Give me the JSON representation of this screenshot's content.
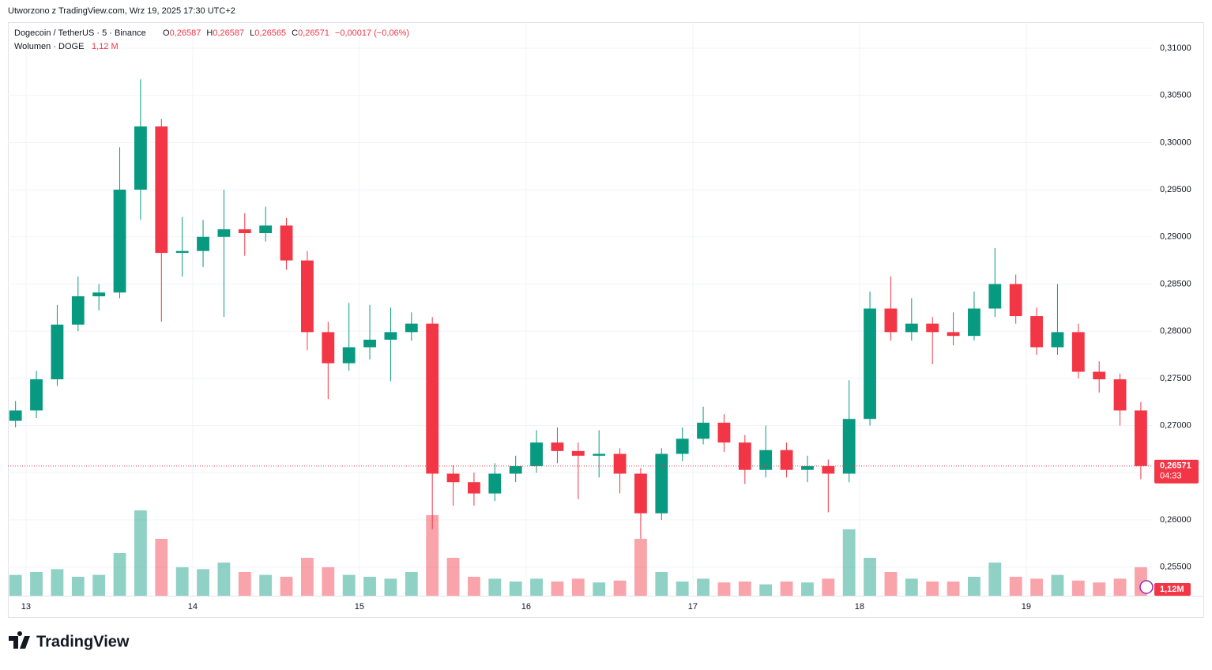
{
  "header": {
    "created": "Utworzono z TradingView.com, Wrz 19, 2025 17:30 UTC+2"
  },
  "chart_data": {
    "type": "candlestick",
    "title": "Dogecoin / TetherUS · 5 · Binance",
    "ohlc_legend": {
      "o_label": "O",
      "o": "0,26587",
      "h_label": "H",
      "h": "0,26587",
      "l_label": "L",
      "l": "0,26565",
      "c_label": "C",
      "c": "0,26571",
      "change": "−0,00017 (−0,06%)"
    },
    "volume_title": "Wolumen · DOGE",
    "volume_legend": "1,12 M",
    "x": [
      -1.5,
      1.5,
      4.5,
      7.5,
      10.5,
      13.5,
      16.5,
      19.5,
      22.5,
      25.5,
      28.5,
      31.5,
      34.5,
      37.5,
      40.5,
      43.5,
      46.5,
      49.5,
      52.5,
      55.5,
      58.5,
      61.5,
      64.5,
      67.5,
      70.5,
      73.5,
      76.5,
      79.5,
      82.5,
      85.5,
      88.5,
      91.5,
      94.5,
      97.5,
      100.5,
      103.5,
      106.5,
      109.5,
      112.5,
      115.5,
      118.5,
      121.5,
      124.5,
      127.5,
      130.5,
      133.5,
      136.5,
      139.5,
      142.5,
      145.5,
      148.5,
      151.5,
      154.5,
      157.5,
      160.5
    ],
    "open": [
      0.2705,
      0.2716,
      0.2749,
      0.2807,
      0.2837,
      0.2841,
      0.295,
      0.3017,
      0.2883,
      0.2885,
      0.29,
      0.2908,
      0.2904,
      0.2912,
      0.2875,
      0.2799,
      0.2766,
      0.2783,
      0.2791,
      0.2799,
      0.2808,
      0.2649,
      0.264,
      0.2628,
      0.2649,
      0.2657,
      0.2682,
      0.2673,
      0.2668,
      0.267,
      0.2649,
      0.2607,
      0.267,
      0.2686,
      0.2703,
      0.2682,
      0.2653,
      0.2674,
      0.2653,
      0.2657,
      0.2649,
      0.2707,
      0.2824,
      0.2799,
      0.2808,
      0.2799,
      0.2795,
      0.2824,
      0.285,
      0.2816,
      0.2783,
      0.2799,
      0.2757,
      0.2749,
      0.2716
    ],
    "high": [
      0.2726,
      0.2758,
      0.2828,
      0.2858,
      0.285,
      0.2995,
      0.3067,
      0.3025,
      0.2921,
      0.2918,
      0.295,
      0.2925,
      0.2932,
      0.292,
      0.2885,
      0.281,
      0.283,
      0.2828,
      0.2825,
      0.282,
      0.2815,
      0.2658,
      0.265,
      0.266,
      0.2668,
      0.2695,
      0.2698,
      0.2682,
      0.2695,
      0.2676,
      0.2655,
      0.2676,
      0.2698,
      0.272,
      0.2712,
      0.269,
      0.27,
      0.2682,
      0.2668,
      0.2664,
      0.2748,
      0.2842,
      0.2858,
      0.2835,
      0.2815,
      0.282,
      0.2842,
      0.2888,
      0.286,
      0.2825,
      0.285,
      0.2808,
      0.2768,
      0.2755,
      0.2725
    ],
    "low": [
      0.2698,
      0.2708,
      0.2742,
      0.28,
      0.2822,
      0.2835,
      0.2918,
      0.281,
      0.2858,
      0.2868,
      0.2815,
      0.288,
      0.2895,
      0.2865,
      0.278,
      0.2728,
      0.2758,
      0.277,
      0.2747,
      0.279,
      0.259,
      0.2615,
      0.2615,
      0.262,
      0.264,
      0.265,
      0.266,
      0.2622,
      0.2645,
      0.2628,
      0.258,
      0.26,
      0.2662,
      0.268,
      0.2672,
      0.2638,
      0.2645,
      0.2645,
      0.264,
      0.2608,
      0.264,
      0.27,
      0.279,
      0.279,
      0.2765,
      0.2785,
      0.279,
      0.2815,
      0.2808,
      0.2775,
      0.2775,
      0.275,
      0.2735,
      0.27,
      0.2643
    ],
    "close": [
      0.2716,
      0.2749,
      0.2807,
      0.2837,
      0.2841,
      0.295,
      0.3017,
      0.2883,
      0.2885,
      0.29,
      0.2908,
      0.2904,
      0.2912,
      0.2875,
      0.2799,
      0.2766,
      0.2783,
      0.2791,
      0.2799,
      0.2808,
      0.2649,
      0.264,
      0.2628,
      0.2649,
      0.2657,
      0.2682,
      0.2673,
      0.2668,
      0.267,
      0.2649,
      0.2607,
      0.267,
      0.2686,
      0.2703,
      0.2682,
      0.2653,
      0.2674,
      0.2653,
      0.2657,
      0.2649,
      0.2707,
      0.2824,
      0.2799,
      0.2808,
      0.2799,
      0.2795,
      0.2824,
      0.285,
      0.2816,
      0.2783,
      0.2799,
      0.2757,
      0.2749,
      0.2716,
      0.26571
    ],
    "volume": [
      22,
      25,
      28,
      20,
      22,
      45,
      90,
      60,
      30,
      28,
      35,
      25,
      22,
      20,
      40,
      30,
      22,
      20,
      18,
      25,
      85,
      40,
      20,
      18,
      15,
      18,
      15,
      18,
      14,
      16,
      60,
      25,
      15,
      18,
      14,
      15,
      12,
      15,
      14,
      18,
      70,
      40,
      25,
      18,
      15,
      15,
      20,
      35,
      20,
      18,
      22,
      16,
      14,
      18,
      30
    ],
    "up_color": "#089981",
    "down_color": "#f23645",
    "xlim": [
      -2.6,
      162.1
    ],
    "xticks": [
      {
        "value": 0,
        "label": "13"
      },
      {
        "value": 24,
        "label": "14"
      },
      {
        "value": 48,
        "label": "15"
      },
      {
        "value": 72,
        "label": "16"
      },
      {
        "value": 96,
        "label": "17"
      },
      {
        "value": 120,
        "label": "18"
      },
      {
        "value": 144,
        "label": "19"
      }
    ],
    "ylim": [
      0.25196,
      0.31276
    ],
    "yticks": [
      {
        "value": 0.255,
        "label": "0,25500"
      },
      {
        "value": 0.26,
        "label": "0,26000"
      },
      {
        "value": 0.265,
        "label": "0,26500"
      },
      {
        "value": 0.27,
        "label": "0,27000"
      },
      {
        "value": 0.275,
        "label": "0,27500"
      },
      {
        "value": 0.28,
        "label": "0,28000"
      },
      {
        "value": 0.285,
        "label": "0,28500"
      },
      {
        "value": 0.29,
        "label": "0,29000"
      },
      {
        "value": 0.295,
        "label": "0,29500"
      },
      {
        "value": 0.3,
        "label": "0,30000"
      },
      {
        "value": 0.305,
        "label": "0,30500"
      },
      {
        "value": 0.31,
        "label": "0,31000"
      }
    ],
    "volume_ylim": [
      0,
      400
    ],
    "last_price": {
      "value": 0.26571,
      "label": "0,26571"
    },
    "countdown": "04:33",
    "volume_tag": "1,12M",
    "grid": true
  },
  "footer": {
    "logo": "TradingView"
  }
}
